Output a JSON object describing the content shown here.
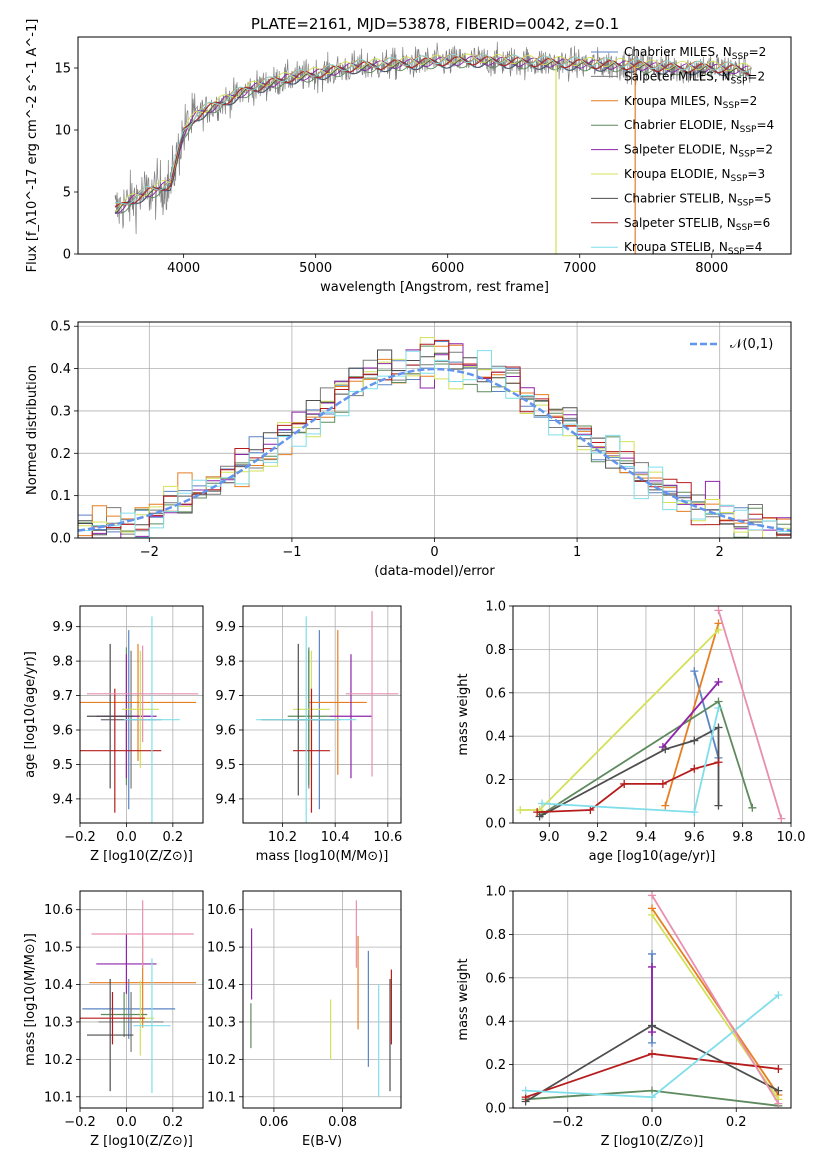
{
  "figure": {
    "title": "PLATE=2161, MJD=53878, FIBERID=0042, z=0.1"
  },
  "colors": {
    "Chabrier MILES": "#5B84C4",
    "Salpeter MILES": "#7A7A7A",
    "Kroupa MILES": "#E67E22",
    "Chabrier ELODIE": "#5E8A5E",
    "Salpeter ELODIE": "#8E24AA",
    "Kroupa ELODIE": "#D4E157",
    "Chabrier STELIB": "#4E4E4E",
    "Salpeter STELIB": "#B71C1C",
    "Kroupa STELIB": "#80DEEA",
    "Kroupa STELIB (massweight)": "#E88FB0",
    "data spectrum": "#808080",
    "normal curve": "#6495ED"
  },
  "chart_data": [
    {
      "type": "line",
      "panel": "spectrum",
      "xlabel": "wavelength [Angstrom, rest frame]",
      "ylabel": "Flux [f_λ10^-17 erg cm^-2 s^-1 A^-1]",
      "xlim": [
        3200,
        8600
      ],
      "ylim": [
        0,
        17.5
      ],
      "xticks": [
        4000,
        5000,
        6000,
        7000,
        8000
      ],
      "yticks": [
        0,
        5,
        10,
        15
      ],
      "grid": false,
      "legend_position": "top-right",
      "continuum_points": {
        "x": [
          3500,
          3650,
          3800,
          3900,
          4000,
          4100,
          4300,
          4500,
          4800,
          5000,
          5300,
          5600,
          5900,
          6200,
          6500,
          6800,
          7100,
          7400,
          7700,
          8000,
          8300
        ],
        "y": [
          3.6,
          4.6,
          5.2,
          5.7,
          9.8,
          11.2,
          12.3,
          13.3,
          14.2,
          14.5,
          15.1,
          15.3,
          15.5,
          15.6,
          15.5,
          15.4,
          15.3,
          15.2,
          15.0,
          15.0,
          14.8
        ]
      },
      "series": [
        {
          "name": "Chabrier MILES",
          "nssp": "2"
        },
        {
          "name": "Salpeter MILES",
          "nssp": "2"
        },
        {
          "name": "Kroupa MILES",
          "nssp": "2"
        },
        {
          "name": "Chabrier ELODIE",
          "nssp": "4"
        },
        {
          "name": "Salpeter ELODIE",
          "nssp": "2"
        },
        {
          "name": "Kroupa ELODIE",
          "nssp": "3"
        },
        {
          "name": "Chabrier STELIB",
          "nssp": "5"
        },
        {
          "name": "Salpeter STELIB",
          "nssp": "6"
        },
        {
          "name": "Kroupa STELIB",
          "nssp": "4"
        }
      ]
    },
    {
      "type": "line",
      "panel": "residuals",
      "xlabel": "(data-model)/error",
      "ylabel": "Normed distribution",
      "xlim": [
        -2.5,
        2.5
      ],
      "ylim": [
        0,
        0.51
      ],
      "xticks": [
        -2,
        -1,
        0,
        1,
        2
      ],
      "yticks": [
        0.0,
        0.1,
        0.2,
        0.3,
        0.4,
        0.5
      ],
      "grid": true,
      "legend_position": "top-right",
      "legend_label": "𝒩(0,1)",
      "bin_width": 0.1
    },
    {
      "type": "scatter",
      "panel": "Z-age",
      "xlabel": "Z [log10(Z/Z⊙)]",
      "ylabel": "age [log10(age/yr)]",
      "xlim": [
        -0.2,
        0.33
      ],
      "ylim": [
        9.33,
        9.96
      ],
      "xticks": [
        -0.2,
        0.0,
        0.2
      ],
      "yticks": [
        9.4,
        9.5,
        9.6,
        9.7,
        9.8,
        9.9
      ],
      "grid": true,
      "points": [
        {
          "series": "Chabrier MILES",
          "x": 0.01,
          "y": 9.63,
          "xerr": 0.12,
          "yerr": 0.26
        },
        {
          "series": "Salpeter MILES",
          "x": 0.02,
          "y": 9.63,
          "xerr": 0.13,
          "yerr": 0.2
        },
        {
          "series": "Kroupa MILES",
          "x": 0.05,
          "y": 9.68,
          "xerr": 0.25,
          "yerr": 0.17
        },
        {
          "series": "Chabrier ELODIE",
          "x": 0.0,
          "y": 9.64,
          "xerr": 0.1,
          "yerr": 0.2
        },
        {
          "series": "Salpeter ELODIE",
          "x": 0.0,
          "y": 9.64,
          "xerr": 0.13,
          "yerr": 0.18
        },
        {
          "series": "Kroupa ELODIE",
          "x": 0.06,
          "y": 9.66,
          "xerr": 0.08,
          "yerr": 0.17
        },
        {
          "series": "Chabrier STELIB",
          "x": -0.07,
          "y": 9.64,
          "xerr": 0.1,
          "yerr": 0.21
        },
        {
          "series": "Salpeter STELIB",
          "x": -0.05,
          "y": 9.54,
          "xerr": 0.2,
          "yerr": 0.18
        },
        {
          "series": "Kroupa STELIB",
          "x": 0.11,
          "y": 9.63,
          "xerr": 0.12,
          "yerr": 0.3
        },
        {
          "series": "Kroupa STELIB (massweight)",
          "x": 0.07,
          "y": 9.705,
          "xerr": 0.24,
          "yerr": 0.14
        }
      ]
    },
    {
      "type": "scatter",
      "panel": "mass-age",
      "xlabel": "mass [log10(M/M⊙)]",
      "ylabel": "",
      "xlim": [
        10.05,
        10.65
      ],
      "ylim": [
        9.33,
        9.96
      ],
      "xticks": [
        10.2,
        10.4,
        10.6
      ],
      "yticks": [
        9.4,
        9.5,
        9.6,
        9.7,
        9.8,
        9.9
      ],
      "grid": true,
      "points": [
        {
          "series": "Chabrier MILES",
          "x": 10.34,
          "y": 9.63,
          "xerr": 0.08,
          "yerr": 0.26
        },
        {
          "series": "Salpeter MILES",
          "x": 10.3,
          "y": 9.63,
          "xerr": 0.1,
          "yerr": 0.2
        },
        {
          "series": "Kroupa MILES",
          "x": 10.41,
          "y": 9.68,
          "xerr": 0.11,
          "yerr": 0.21
        },
        {
          "series": "Chabrier ELODIE",
          "x": 10.3,
          "y": 9.64,
          "xerr": 0.08,
          "yerr": 0.2
        },
        {
          "series": "Salpeter ELODIE",
          "x": 10.46,
          "y": 9.64,
          "xerr": 0.08,
          "yerr": 0.18
        },
        {
          "series": "Kroupa ELODIE",
          "x": 10.31,
          "y": 9.66,
          "xerr": 0.07,
          "yerr": 0.17
        },
        {
          "series": "Chabrier STELIB",
          "x": 10.26,
          "y": 9.63,
          "xerr": 0.14,
          "yerr": 0.22
        },
        {
          "series": "Salpeter STELIB",
          "x": 10.31,
          "y": 9.54,
          "xerr": 0.07,
          "yerr": 0.18
        },
        {
          "series": "Kroupa STELIB",
          "x": 10.29,
          "y": 9.63,
          "xerr": 0.19,
          "yerr": 0.3
        },
        {
          "series": "Kroupa STELIB (massweight)",
          "x": 10.54,
          "y": 9.705,
          "xerr": 0.1,
          "yerr": 0.24
        }
      ]
    },
    {
      "type": "line",
      "panel": "age-massweight",
      "xlabel": "age [log10(age/yr)]",
      "ylabel": "mass weight",
      "xlim": [
        8.85,
        10.0
      ],
      "ylim": [
        0.0,
        1.0
      ],
      "xticks": [
        9.0,
        9.2,
        9.4,
        9.6,
        9.8,
        10.0
      ],
      "yticks": [
        0.0,
        0.2,
        0.4,
        0.6,
        0.8,
        1.0
      ],
      "grid": true,
      "series": [
        {
          "name": "Chabrier MILES",
          "x": [
            9.6,
            9.7
          ],
          "y": [
            0.7,
            0.3
          ]
        },
        {
          "name": "Kroupa MILES",
          "x": [
            9.48,
            9.7
          ],
          "y": [
            0.08,
            0.92
          ]
        },
        {
          "name": "Chabrier ELODIE",
          "x": [
            8.97,
            9.7,
            9.84
          ],
          "y": [
            0.04,
            0.56,
            0.07
          ]
        },
        {
          "name": "Salpeter ELODIE",
          "x": [
            9.47,
            9.7
          ],
          "y": [
            0.35,
            0.65
          ]
        },
        {
          "name": "Kroupa ELODIE",
          "x": [
            8.88,
            8.96,
            9.7
          ],
          "y": [
            0.06,
            0.06,
            0.89
          ]
        },
        {
          "name": "Chabrier STELIB",
          "x": [
            8.96,
            9.48,
            9.6,
            9.7,
            9.7
          ],
          "y": [
            0.03,
            0.34,
            0.38,
            0.44,
            0.08
          ]
        },
        {
          "name": "Salpeter STELIB",
          "x": [
            8.95,
            9.17,
            9.31,
            9.47,
            9.6,
            9.7
          ],
          "y": [
            0.05,
            0.06,
            0.18,
            0.18,
            0.25,
            0.28
          ]
        },
        {
          "name": "Kroupa STELIB",
          "x": [
            8.97,
            9.6,
            9.7
          ],
          "y": [
            0.09,
            0.05,
            0.53
          ]
        },
        {
          "name": "Kroupa STELIB (massweight)",
          "x": [
            9.7,
            9.96
          ],
          "y": [
            0.98,
            0.02
          ]
        }
      ]
    },
    {
      "type": "scatter",
      "panel": "Z-mass",
      "xlabel": "Z [log10(Z/Z⊙)]",
      "ylabel": "mass [log10(M/M⊙)]",
      "xlim": [
        -0.2,
        0.33
      ],
      "ylim": [
        10.07,
        10.65
      ],
      "xticks": [
        -0.2,
        0.0,
        0.2
      ],
      "yticks": [
        10.1,
        10.2,
        10.3,
        10.4,
        10.5,
        10.6
      ],
      "grid": true,
      "points": [
        {
          "series": "Chabrier MILES",
          "x": 0.01,
          "y": 10.335,
          "xerr": 0.2,
          "yerr": 0.08
        },
        {
          "series": "Salpeter MILES",
          "x": 0.02,
          "y": 10.3,
          "xerr": 0.14,
          "yerr": 0.08
        },
        {
          "series": "Kroupa MILES",
          "x": 0.07,
          "y": 10.405,
          "xerr": 0.23,
          "yerr": 0.12
        },
        {
          "series": "Chabrier ELODIE",
          "x": -0.01,
          "y": 10.32,
          "xerr": 0.1,
          "yerr": 0.06
        },
        {
          "series": "Salpeter ELODIE",
          "x": 0.0,
          "y": 10.455,
          "xerr": 0.13,
          "yerr": 0.08
        },
        {
          "series": "Kroupa ELODIE",
          "x": 0.06,
          "y": 10.31,
          "xerr": 0.06,
          "yerr": 0.1
        },
        {
          "series": "Chabrier STELIB",
          "x": -0.07,
          "y": 10.265,
          "xerr": 0.1,
          "yerr": 0.15
        },
        {
          "series": "Salpeter STELIB",
          "x": -0.06,
          "y": 10.31,
          "xerr": 0.14,
          "yerr": 0.07
        },
        {
          "series": "Kroupa STELIB",
          "x": 0.11,
          "y": 10.29,
          "xerr": 0.08,
          "yerr": 0.18
        },
        {
          "series": "Kroupa STELIB (massweight)",
          "x": 0.07,
          "y": 10.535,
          "xerr": 0.22,
          "yerr": 0.09
        }
      ]
    },
    {
      "type": "scatter",
      "panel": "EBV-mass",
      "xlabel": "E(B-V)",
      "ylabel": "",
      "xlim": [
        0.051,
        0.097
      ],
      "ylim": [
        10.07,
        10.65
      ],
      "xticks": [
        0.06,
        0.08
      ],
      "yticks": [
        10.1,
        10.2,
        10.3,
        10.4,
        10.5,
        10.6
      ],
      "grid": true,
      "points": [
        {
          "series": "Chabrier MILES",
          "x": 0.0875,
          "y": 10.335,
          "yerr": 0.155
        },
        {
          "series": "Kroupa MILES",
          "x": 0.0845,
          "y": 10.405,
          "yerr": 0.125
        },
        {
          "series": "Chabrier ELODIE",
          "x": 0.0533,
          "y": 10.29,
          "yerr": 0.06
        },
        {
          "series": "Salpeter ELODIE",
          "x": 0.0535,
          "y": 10.455,
          "yerr": 0.095
        },
        {
          "series": "Kroupa ELODIE",
          "x": 0.0765,
          "y": 10.28,
          "yerr": 0.08
        },
        {
          "series": "Chabrier STELIB",
          "x": 0.0938,
          "y": 10.265,
          "yerr": 0.15
        },
        {
          "series": "Salpeter STELIB",
          "x": 0.0942,
          "y": 10.34,
          "yerr": 0.1
        },
        {
          "series": "Kroupa STELIB",
          "x": 0.0905,
          "y": 10.25,
          "yerr": 0.15
        },
        {
          "series": "Kroupa STELIB (massweight)",
          "x": 0.084,
          "y": 10.535,
          "yerr": 0.09
        }
      ]
    },
    {
      "type": "line",
      "panel": "Z-massweight",
      "xlabel": "Z [log10(Z/Z⊙)]",
      "ylabel": "mass weight",
      "xlim": [
        -0.33,
        0.33
      ],
      "ylim": [
        0.0,
        1.0
      ],
      "xticks": [
        -0.2,
        0.0,
        0.2
      ],
      "yticks": [
        0.0,
        0.2,
        0.4,
        0.6,
        0.8,
        1.0
      ],
      "grid": true,
      "series": [
        {
          "name": "Chabrier MILES",
          "x": [
            0.0,
            0.0
          ],
          "y": [
            0.71,
            0.3
          ]
        },
        {
          "name": "Kroupa MILES",
          "x": [
            0.0,
            0.3
          ],
          "y": [
            0.92,
            0.06
          ]
        },
        {
          "name": "Chabrier ELODIE",
          "x": [
            -0.3,
            0.0,
            0.3
          ],
          "y": [
            0.04,
            0.08,
            0.01
          ]
        },
        {
          "name": "Salpeter ELODIE",
          "x": [
            0.0,
            0.0
          ],
          "y": [
            0.65,
            0.35
          ]
        },
        {
          "name": "Kroupa ELODIE",
          "x": [
            0.0,
            0.3
          ],
          "y": [
            0.89,
            0.04
          ]
        },
        {
          "name": "Chabrier STELIB",
          "x": [
            -0.3,
            0.0,
            0.3
          ],
          "y": [
            0.03,
            0.38,
            0.08
          ]
        },
        {
          "name": "Salpeter STELIB",
          "x": [
            -0.3,
            0.0,
            0.3
          ],
          "y": [
            0.05,
            0.25,
            0.18
          ]
        },
        {
          "name": "Kroupa STELIB",
          "x": [
            -0.3,
            0.0,
            0.3
          ],
          "y": [
            0.08,
            0.05,
            0.52
          ]
        },
        {
          "name": "Kroupa STELIB (massweight)",
          "x": [
            0.0,
            0.3
          ],
          "y": [
            0.98,
            0.02
          ]
        }
      ]
    }
  ]
}
